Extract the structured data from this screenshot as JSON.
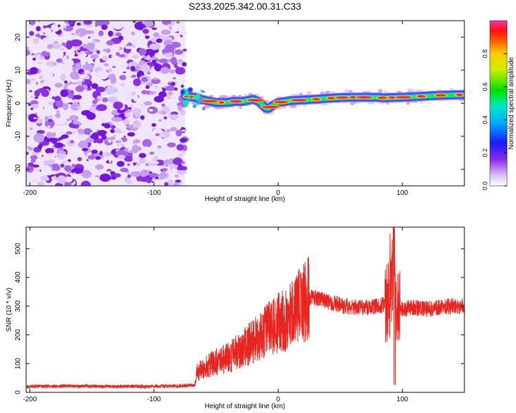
{
  "title": "S233.2025.342.00.31.C33",
  "colors": {
    "snr_line": "#e8251f",
    "ridge": "#ff2a1a",
    "noise_dark": "#7a1fe6",
    "noise_light": "#d9c2f7"
  },
  "chart_data": [
    {
      "type": "heatmap",
      "name": "spectrogram",
      "xlabel": "Height of straight line (km)",
      "ylabel": "Frequency (Hz)",
      "xlim": [
        -203,
        150
      ],
      "ylim": [
        -25,
        25
      ],
      "xticks": [
        -200,
        -100,
        0,
        100
      ],
      "xtick_labels": [
        "-200",
        "-100",
        "0",
        "100"
      ],
      "yticks": [
        -20,
        -10,
        0,
        10,
        20
      ],
      "ytick_labels": [
        "-20",
        "-10",
        "0",
        "10",
        "20"
      ],
      "noise_region_x": [
        -203,
        -75
      ],
      "ridge": {
        "x": [
          -75,
          -68,
          -60,
          -50,
          -40,
          -35,
          -30,
          -25,
          -20,
          -15,
          -12,
          -10,
          -8,
          -5,
          0,
          5,
          10,
          20,
          30,
          40,
          50,
          60,
          70,
          80,
          85,
          90,
          100,
          110,
          120,
          130,
          140,
          150
        ],
        "y": [
          2.2,
          1.8,
          1.0,
          0.2,
          0.3,
          0.6,
          0.5,
          0.8,
          1.2,
          0.4,
          -0.8,
          -1.5,
          -1.6,
          -0.8,
          0.2,
          0.5,
          0.8,
          1.0,
          1.2,
          1.5,
          1.7,
          1.8,
          1.8,
          1.8,
          1.6,
          1.7,
          1.8,
          2.0,
          2.2,
          2.4,
          2.5,
          2.6
        ]
      },
      "colorbar": {
        "label": "Normalized spectral amplitude",
        "range": [
          0,
          1
        ],
        "ticks": [
          0.0,
          0.2,
          0.4,
          0.6,
          0.8
        ],
        "tick_labels": [
          "0.0",
          "0.2",
          "0.4",
          "0.6",
          "0.8"
        ]
      }
    },
    {
      "type": "line",
      "name": "snr",
      "xlabel": "Height of straight line (km)",
      "ylabel": "SNR (10 * v/v)",
      "xlim": [
        -203,
        150
      ],
      "ylim": [
        0,
        575
      ],
      "xticks": [
        -200,
        -100,
        0,
        100
      ],
      "xtick_labels": [
        "-200",
        "-100",
        "0",
        "100"
      ],
      "yticks": [
        0,
        100,
        200,
        300,
        400,
        500
      ],
      "ytick_labels": [
        "0",
        "100",
        "200",
        "300",
        "400",
        "500"
      ],
      "series": [
        {
          "name": "SNR",
          "x": [
            -203,
            -190,
            -180,
            -170,
            -160,
            -150,
            -140,
            -130,
            -120,
            -110,
            -100,
            -90,
            -80,
            -70,
            -67,
            -66,
            -60,
            -50,
            -40,
            -30,
            -20,
            -10,
            0,
            10,
            20,
            25,
            30,
            40,
            50,
            60,
            70,
            80,
            85,
            88,
            90,
            92,
            93,
            95,
            100,
            110,
            120,
            130,
            140,
            150
          ],
          "y": [
            20,
            22,
            20,
            23,
            21,
            22,
            20,
            21,
            22,
            20,
            21,
            22,
            22,
            25,
            25,
            70,
            85,
            105,
            120,
            150,
            175,
            210,
            240,
            270,
            310,
            330,
            330,
            315,
            305,
            295,
            295,
            300,
            305,
            310,
            320,
            400,
            560,
            320,
            290,
            295,
            290,
            295,
            300,
            300
          ]
        }
      ]
    }
  ]
}
